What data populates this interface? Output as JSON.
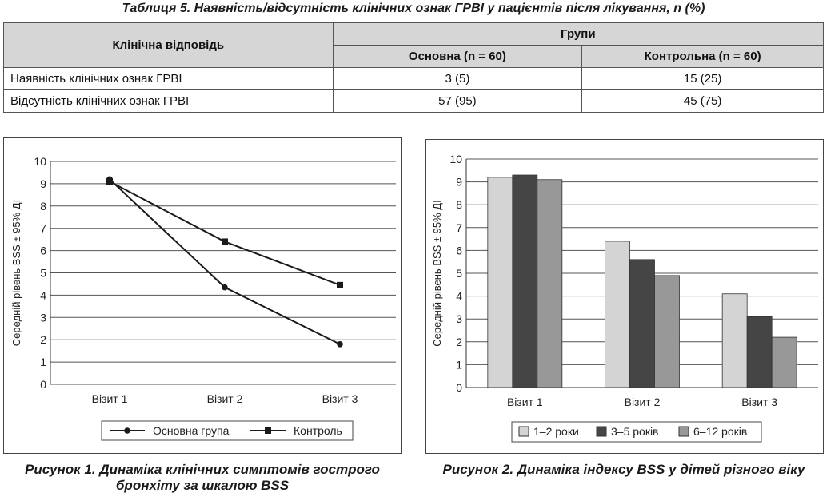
{
  "table": {
    "title": "Таблиця 5. Наявність/відсутність клінічних ознак ГРВІ у пацієнтів після лікування, n (%)",
    "header": {
      "response": "Клінічна відповідь",
      "groups": "Групи",
      "main": "Основна (n = 60)",
      "control": "Контрольна (n = 60)"
    },
    "rows": [
      {
        "label": "Наявність клінічних ознак ГРВІ",
        "main": "3 (5)",
        "control": "15 (25)"
      },
      {
        "label": "Відсутність клінічних ознак ГРВІ",
        "main": "57 (95)",
        "control": "45 (75)"
      }
    ]
  },
  "chart_data": [
    {
      "type": "line",
      "categories": [
        "Візит 1",
        "Візит 2",
        "Візит 3"
      ],
      "series": [
        {
          "name": "Основна група",
          "marker": "circle",
          "values": [
            9.2,
            4.35,
            1.8
          ]
        },
        {
          "name": "Контроль",
          "marker": "square",
          "values": [
            9.1,
            6.4,
            4.45
          ]
        }
      ],
      "ylabel": "Середній рівень BSS ± 95% ДІ",
      "ylim": [
        0,
        10
      ],
      "yticks": [
        "0",
        "1",
        "2",
        "3",
        "4",
        "5",
        "6",
        "7",
        "8",
        "9",
        "10"
      ],
      "grid": true,
      "legend_position": "bottom",
      "caption": "Рисунок 1. Динаміка клінічних симптомів гострого бронхіту за шкалою BSS"
    },
    {
      "type": "bar",
      "categories": [
        "Візит 1",
        "Візит 2",
        "Візит 3"
      ],
      "series": [
        {
          "name": "1–2 роки",
          "color": "#d4d4d4",
          "values": [
            9.2,
            6.4,
            4.1
          ]
        },
        {
          "name": "3–5 років",
          "color": "#454545",
          "values": [
            9.3,
            5.6,
            3.1
          ]
        },
        {
          "name": "6–12 років",
          "color": "#989898",
          "values": [
            9.1,
            4.9,
            2.2
          ]
        }
      ],
      "ylabel": "Середній рівень BSS ± 95% ДІ",
      "ylim": [
        0,
        10
      ],
      "yticks": [
        "0",
        "1",
        "2",
        "3",
        "4",
        "5",
        "6",
        "7",
        "8",
        "9",
        "10"
      ],
      "grid": true,
      "legend_position": "bottom",
      "caption": "Рисунок 2. Динаміка індексу BSS у дітей різного віку"
    }
  ]
}
